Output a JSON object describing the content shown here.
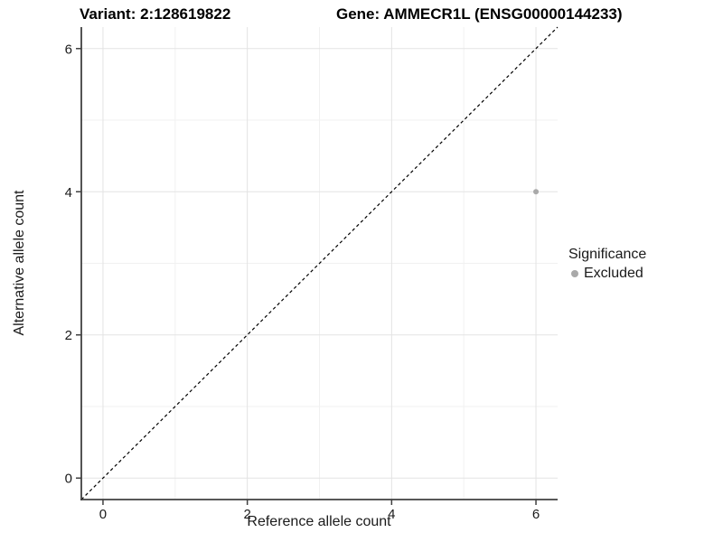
{
  "chart_data": {
    "type": "scatter",
    "title_left": "Variant: 2:128619822",
    "title_right": "Gene: AMMECR1L (ENSG00000144233)",
    "xlabel": "Reference allele count",
    "ylabel": "Alternative allele count",
    "xlim": [
      -0.3,
      6.3
    ],
    "ylim": [
      -0.3,
      6.3
    ],
    "xticks": [
      0,
      2,
      4,
      6
    ],
    "yticks": [
      0,
      2,
      4,
      6
    ],
    "minor_xticks": [
      1,
      3,
      5
    ],
    "minor_yticks": [
      1,
      3,
      5
    ],
    "grid": "major+minor",
    "reference_line": {
      "type": "identity",
      "slope": 1,
      "intercept": 0,
      "style": "dashed",
      "color": "#000000"
    },
    "series": [
      {
        "name": "Excluded",
        "color": "#a9a9a9",
        "points": [
          {
            "x": 6,
            "y": 4
          }
        ]
      }
    ],
    "legend": {
      "title": "Significance",
      "position": "right",
      "entries": [
        {
          "label": "Excluded",
          "color": "#a9a9a9"
        }
      ]
    }
  },
  "colors": {
    "background": "#ffffff",
    "grid_major": "#e3e3e3",
    "grid_minor": "#f1f1f1",
    "axis_line": "#404040",
    "text": "#1a1a1a",
    "point": "#a9a9a9"
  }
}
